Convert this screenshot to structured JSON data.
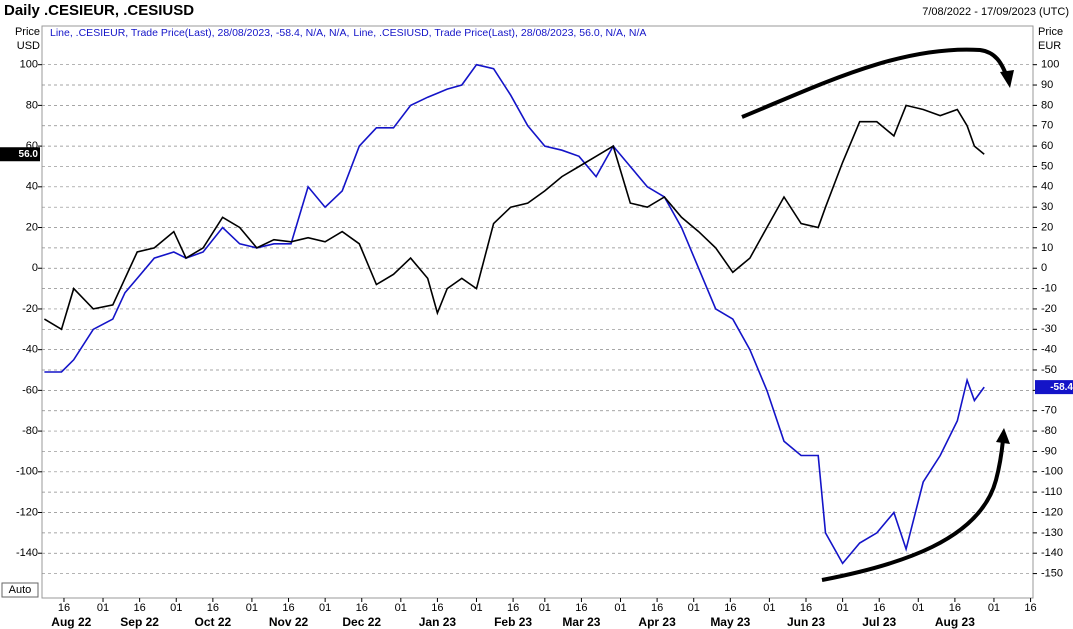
{
  "chart_data": {
    "type": "line",
    "title": "Daily .CESIEUR, .CESIUSD",
    "date_range": "7/08/2022 - 17/09/2023 (UTC)",
    "y_label": "Price",
    "y_unit": "USD",
    "y2_label": "Price",
    "y2_unit": "EUR",
    "scale_mode": "Auto",
    "xlim": [
      "2022-08-07",
      "2023-09-17"
    ],
    "ylim": [
      -162,
      119
    ],
    "y2lim": [
      -162,
      119
    ],
    "yticks": [
      100,
      80,
      60,
      40,
      20,
      0,
      -20,
      -40,
      -60,
      -80,
      -100,
      -120,
      -140
    ],
    "y2ticks": [
      100,
      90,
      80,
      70,
      60,
      50,
      40,
      30,
      20,
      10,
      0,
      -10,
      -20,
      -30,
      -40,
      -50,
      -60,
      -70,
      -80,
      -90,
      -100,
      -110,
      -120,
      -130,
      -140,
      -150
    ],
    "grid": true,
    "xticks": [
      {
        "value": "2022-08-16",
        "label": "16"
      },
      {
        "value": "2022-09-01",
        "label": "01"
      },
      {
        "value": "2022-09-16",
        "label": "16"
      },
      {
        "value": "2022-10-01",
        "label": "01"
      },
      {
        "value": "2022-10-16",
        "label": "16"
      },
      {
        "value": "2022-11-01",
        "label": "01"
      },
      {
        "value": "2022-11-16",
        "label": "16"
      },
      {
        "value": "2022-12-01",
        "label": "01"
      },
      {
        "value": "2022-12-16",
        "label": "16"
      },
      {
        "value": "2023-01-01",
        "label": "01"
      },
      {
        "value": "2023-01-16",
        "label": "16"
      },
      {
        "value": "2023-02-01",
        "label": "01"
      },
      {
        "value": "2023-02-16",
        "label": "16"
      },
      {
        "value": "2023-03-01",
        "label": "01"
      },
      {
        "value": "2023-03-16",
        "label": "16"
      },
      {
        "value": "2023-04-01",
        "label": "01"
      },
      {
        "value": "2023-04-16",
        "label": "16"
      },
      {
        "value": "2023-05-01",
        "label": "01"
      },
      {
        "value": "2023-05-16",
        "label": "16"
      },
      {
        "value": "2023-06-01",
        "label": "01"
      },
      {
        "value": "2023-06-16",
        "label": "16"
      },
      {
        "value": "2023-07-01",
        "label": "01"
      },
      {
        "value": "2023-07-16",
        "label": "16"
      },
      {
        "value": "2023-08-01",
        "label": "01"
      },
      {
        "value": "2023-08-16",
        "label": "16"
      },
      {
        "value": "2023-09-01",
        "label": "01"
      },
      {
        "value": "2023-09-16",
        "label": "16"
      }
    ],
    "month_labels": [
      {
        "value": "2022-08-19",
        "label": "Aug 22"
      },
      {
        "value": "2022-09-16",
        "label": "Sep 22"
      },
      {
        "value": "2022-10-16",
        "label": "Oct 22"
      },
      {
        "value": "2022-11-16",
        "label": "Nov 22"
      },
      {
        "value": "2022-12-16",
        "label": "Dec 22"
      },
      {
        "value": "2023-01-16",
        "label": "Jan 23"
      },
      {
        "value": "2023-02-16",
        "label": "Feb 23"
      },
      {
        "value": "2023-03-16",
        "label": "Mar 23"
      },
      {
        "value": "2023-04-16",
        "label": "Apr 23"
      },
      {
        "value": "2023-05-16",
        "label": "May 23"
      },
      {
        "value": "2023-06-16",
        "label": "Jun 23"
      },
      {
        "value": "2023-07-16",
        "label": "Jul 23"
      },
      {
        "value": "2023-08-16",
        "label": "Aug 23"
      }
    ],
    "x": [
      "2022-08-08",
      "2022-08-15",
      "2022-08-20",
      "2022-08-28",
      "2022-09-05",
      "2022-09-10",
      "2022-09-15",
      "2022-09-22",
      "2022-09-30",
      "2022-10-05",
      "2022-10-12",
      "2022-10-20",
      "2022-10-27",
      "2022-11-03",
      "2022-11-10",
      "2022-11-17",
      "2022-11-24",
      "2022-12-01",
      "2022-12-08",
      "2022-12-15",
      "2022-12-22",
      "2022-12-29",
      "2023-01-05",
      "2023-01-12",
      "2023-01-16",
      "2023-01-20",
      "2023-01-26",
      "2023-02-01",
      "2023-02-08",
      "2023-02-15",
      "2023-02-22",
      "2023-03-01",
      "2023-03-08",
      "2023-03-15",
      "2023-03-22",
      "2023-03-29",
      "2023-04-05",
      "2023-04-12",
      "2023-04-19",
      "2023-04-26",
      "2023-05-03",
      "2023-05-10",
      "2023-05-17",
      "2023-05-24",
      "2023-05-31",
      "2023-06-07",
      "2023-06-14",
      "2023-06-21",
      "2023-06-24",
      "2023-07-01",
      "2023-07-08",
      "2023-07-15",
      "2023-07-22",
      "2023-07-27",
      "2023-08-03",
      "2023-08-10",
      "2023-08-17",
      "2023-08-21",
      "2023-08-24",
      "2023-08-28"
    ],
    "series": [
      {
        "name": "Line, .CESIEUR, Trade Price(Last), 28/08/2023, -58.4, N/A, N/A,",
        "color": "#1414c8",
        "axis": "y2",
        "last_label": "-58.4",
        "values": [
          -51,
          -51,
          -45,
          -30,
          -25,
          -12,
          -5,
          5,
          8,
          5,
          8,
          20,
          12,
          10,
          12,
          12,
          40,
          30,
          38,
          60,
          69,
          69,
          80,
          84,
          86,
          88,
          90,
          100,
          98,
          85,
          70,
          60,
          58,
          55,
          45,
          60,
          50,
          40,
          35,
          20,
          0,
          -20,
          -25,
          -40,
          -60,
          -85,
          -92,
          -92,
          -130,
          -145,
          -135,
          -130,
          -120,
          -138,
          -105,
          -92,
          -75,
          -55,
          -65,
          -58.4
        ]
      },
      {
        "name": "Line, .CESIUSD, Trade Price(Last), 28/08/2023, 56.0, N/A, N/A",
        "color": "#000000",
        "axis": "y",
        "last_label": "56.0",
        "values": [
          -25,
          -30,
          -10,
          -20,
          -18,
          -5,
          8,
          10,
          18,
          5,
          10,
          25,
          20,
          10,
          14,
          13,
          15,
          13,
          18,
          12,
          -8,
          -3,
          5,
          -5,
          -22,
          -10,
          -5,
          -10,
          22,
          30,
          32,
          38,
          45,
          50,
          55,
          60,
          32,
          30,
          35,
          25,
          18,
          10,
          -2,
          5,
          20,
          35,
          22,
          20,
          30,
          52,
          72,
          72,
          65,
          80,
          78,
          75,
          78,
          70,
          60,
          56.0
        ]
      }
    ]
  }
}
